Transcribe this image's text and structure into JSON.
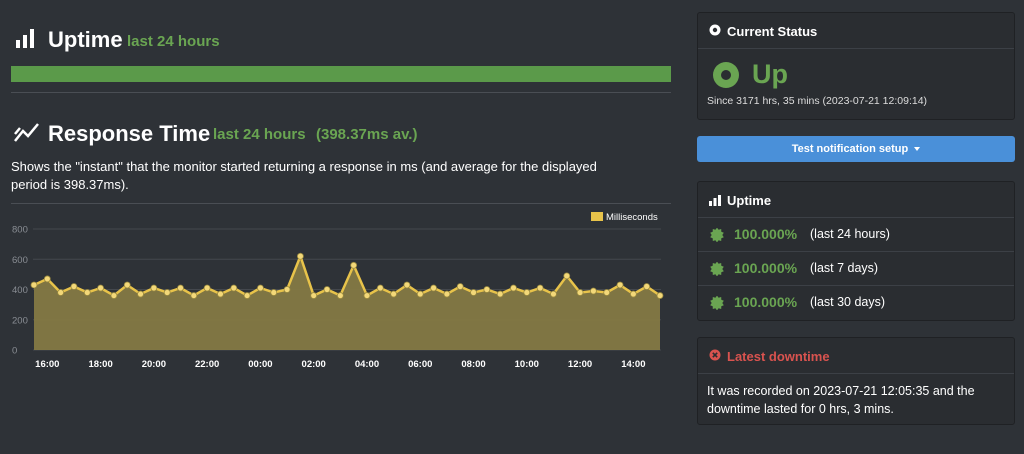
{
  "uptime_section": {
    "title": "Uptime",
    "period": "last 24 hours"
  },
  "response_section": {
    "title": "Response Time",
    "period": "last 24 hours",
    "average": "(398.37ms av.)",
    "description": "Shows the \"instant\" that the monitor started returning a response in ms (and average for the displayed period is 398.37ms)."
  },
  "chart_data": {
    "type": "area",
    "categories": [
      null,
      "16:00",
      null,
      null,
      null,
      "18:00",
      null,
      null,
      null,
      "20:00",
      null,
      null,
      null,
      "22:00",
      null,
      null,
      null,
      "00:00",
      null,
      null,
      null,
      "02:00",
      null,
      null,
      null,
      "04:00",
      null,
      null,
      null,
      "06:00",
      null,
      null,
      null,
      "08:00",
      null,
      null,
      null,
      "10:00",
      null,
      null,
      null,
      "12:00",
      null,
      null,
      null,
      "14:00",
      null,
      null
    ],
    "series": [
      {
        "name": "Milliseconds",
        "color": "#e8c34a",
        "values": [
          430,
          470,
          380,
          420,
          380,
          410,
          360,
          430,
          370,
          410,
          380,
          410,
          360,
          410,
          370,
          410,
          360,
          410,
          380,
          400,
          620,
          360,
          400,
          360,
          560,
          360,
          410,
          370,
          430,
          370,
          410,
          370,
          420,
          380,
          400,
          370,
          410,
          380,
          410,
          370,
          490,
          380,
          390,
          380,
          430,
          370,
          420,
          360
        ]
      }
    ],
    "ylim": [
      0,
      800
    ],
    "yticks": [
      0,
      200,
      400,
      600,
      800
    ],
    "grid": true,
    "legend": "top-right"
  },
  "current_status": {
    "title": "Current Status",
    "status": "Up",
    "since": "Since 3171 hrs, 35 mins (2023-07-21 12:09:14)"
  },
  "button": {
    "label": "Test notification setup"
  },
  "uptime_panel": {
    "title": "Uptime",
    "rows": [
      {
        "value": "100.000%",
        "period": "(last 24 hours)"
      },
      {
        "value": "100.000%",
        "period": "(last 7 days)"
      },
      {
        "value": "100.000%",
        "period": "(last 30 days)"
      }
    ]
  },
  "latest_downtime": {
    "title": "Latest downtime",
    "text": "It was recorded on 2023-07-21 12:05:35 and the downtime lasted for 0 hrs, 3 mins."
  }
}
